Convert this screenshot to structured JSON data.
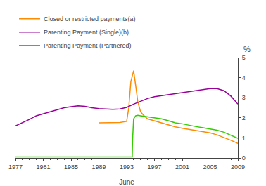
{
  "chart_data": {
    "type": "line",
    "title": "",
    "xlabel": "June",
    "ylabel": "%",
    "xlim": [
      1977,
      2009
    ],
    "ylim": [
      0,
      5
    ],
    "xticks": [
      1977,
      1981,
      1985,
      1989,
      1993,
      1997,
      2001,
      2005,
      2009
    ],
    "yticks": [
      0,
      1,
      2,
      3,
      4,
      5
    ],
    "grid": false,
    "legend": "upper left",
    "series": [
      {
        "name": "Closed or restricted payments(a)",
        "color": "#FF8C00",
        "x": [
          1989,
          1990,
          1991,
          1992,
          1993,
          1993.3,
          1993.6,
          1994.0,
          1994.3,
          1994.6,
          1995,
          1995.5,
          1996,
          1997,
          1998,
          1999,
          2000,
          2001,
          2002,
          2003,
          2004,
          2005,
          2006,
          2007,
          2008,
          2009
        ],
        "values": [
          1.75,
          1.75,
          1.75,
          1.77,
          1.82,
          2.5,
          3.8,
          4.35,
          3.6,
          2.8,
          2.3,
          2.1,
          1.95,
          1.85,
          1.75,
          1.65,
          1.55,
          1.48,
          1.42,
          1.36,
          1.3,
          1.25,
          1.15,
          1.02,
          0.88,
          0.72
        ]
      },
      {
        "name": "Parenting Payment (Single)(b)",
        "color": "#990099",
        "x": [
          1977,
          1978,
          1979,
          1980,
          1981,
          1982,
          1983,
          1984,
          1985,
          1986,
          1987,
          1988,
          1989,
          1990,
          1991,
          1992,
          1993,
          1994,
          1995,
          1996,
          1997,
          1998,
          1999,
          2000,
          2001,
          2002,
          2003,
          2004,
          2005,
          2006,
          2007,
          2008,
          2009
        ],
        "values": [
          1.6,
          1.75,
          1.92,
          2.1,
          2.2,
          2.3,
          2.42,
          2.5,
          2.55,
          2.6,
          2.57,
          2.5,
          2.46,
          2.43,
          2.42,
          2.44,
          2.52,
          2.68,
          2.82,
          2.96,
          3.05,
          3.1,
          3.15,
          3.2,
          3.25,
          3.3,
          3.35,
          3.4,
          3.45,
          3.45,
          3.35,
          3.08,
          2.68
        ]
      },
      {
        "name": "Parenting Payment (Partnered)",
        "color": "#33CC00",
        "x": [
          1977,
          1993.8,
          1993.85,
          1994.0,
          1994.3,
          1994.6,
          1995,
          1996,
          1997,
          1998,
          1999,
          2000,
          2001,
          2002,
          2003,
          2004,
          2005,
          2006,
          2007,
          2008,
          2009
        ],
        "values": [
          0.05,
          0.05,
          0.9,
          1.95,
          2.1,
          2.12,
          2.1,
          2.05,
          2.0,
          1.95,
          1.85,
          1.75,
          1.7,
          1.62,
          1.56,
          1.5,
          1.45,
          1.38,
          1.28,
          1.12,
          0.98
        ]
      }
    ]
  }
}
